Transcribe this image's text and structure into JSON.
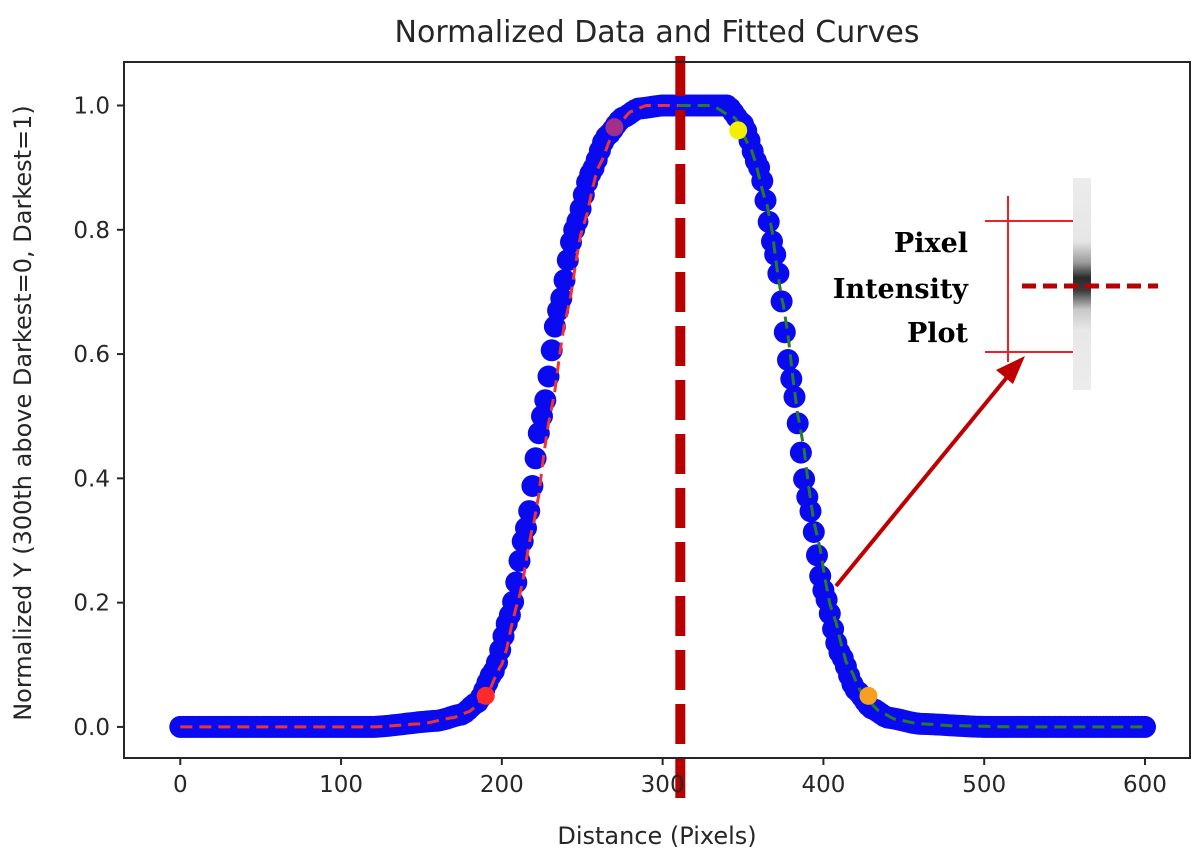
{
  "chart_data": {
    "type": "scatter",
    "title": "Normalized Data and Fitted Curves",
    "xlabel": "Distance (Pixels)",
    "ylabel": "Normalized Y (300th above Darkest=0, Darkest=1)",
    "xlim": [
      -35,
      628
    ],
    "ylim": [
      -0.05,
      1.07
    ],
    "xticks": [
      0,
      100,
      200,
      300,
      400,
      500,
      600
    ],
    "yticks": [
      0.0,
      0.2,
      0.4,
      0.6,
      0.8,
      1.0
    ],
    "xtick_labels": [
      "0",
      "100",
      "200",
      "300",
      "400",
      "500",
      "600"
    ],
    "ytick_labels": [
      "0.0",
      "0.2",
      "0.4",
      "0.6",
      "0.8",
      "1.0"
    ],
    "grid": false,
    "data_series": {
      "color": "#0a0af0",
      "x": [
        0,
        40,
        80,
        120,
        160,
        175,
        185,
        195,
        205,
        215,
        225,
        235,
        245,
        255,
        265,
        275,
        285,
        300,
        320,
        340,
        350,
        360,
        370,
        380,
        390,
        400,
        410,
        420,
        430,
        440,
        460,
        500,
        540,
        580,
        600
      ],
      "y": [
        0.0,
        0.0,
        0.0,
        0.0,
        0.01,
        0.02,
        0.04,
        0.09,
        0.18,
        0.32,
        0.5,
        0.67,
        0.8,
        0.89,
        0.95,
        0.98,
        0.995,
        1.0,
        1.0,
        1.0,
        0.97,
        0.9,
        0.76,
        0.56,
        0.37,
        0.22,
        0.12,
        0.06,
        0.03,
        0.015,
        0.005,
        0.0,
        0.0,
        0.0,
        0.0
      ]
    },
    "fit_left": {
      "color": "#ee3333",
      "x": [
        0,
        40,
        80,
        120,
        150,
        170,
        180,
        190,
        200,
        210,
        220,
        230,
        240,
        250,
        260,
        270,
        280,
        290,
        300,
        310
      ],
      "y": [
        0.0,
        0.0,
        0.0,
        0.0,
        0.005,
        0.015,
        0.025,
        0.05,
        0.1,
        0.2,
        0.33,
        0.5,
        0.66,
        0.8,
        0.9,
        0.96,
        0.99,
        1.0,
        1.0,
        1.0
      ]
    },
    "fit_right": {
      "color": "#2a7a2a",
      "x": [
        310,
        330,
        345,
        355,
        365,
        375,
        385,
        395,
        405,
        415,
        425,
        435,
        445,
        460,
        480,
        520,
        560,
        600
      ],
      "y": [
        1.0,
        1.0,
        0.98,
        0.93,
        0.84,
        0.68,
        0.49,
        0.32,
        0.19,
        0.1,
        0.05,
        0.025,
        0.012,
        0.005,
        0.002,
        0.0,
        0.0,
        0.0
      ]
    },
    "marker_points": [
      {
        "x": 190,
        "y": 0.05,
        "color": "#ff2a2a"
      },
      {
        "x": 270,
        "y": 0.965,
        "color": "#a0308a"
      },
      {
        "x": 347,
        "y": 0.96,
        "color": "#f2f000"
      },
      {
        "x": 428,
        "y": 0.05,
        "color": "#f5a020"
      }
    ],
    "center_line": {
      "x": 311,
      "color": "#b80000"
    }
  },
  "inset": {
    "label_lines": [
      "Pixel",
      "Intensity",
      "Plot"
    ],
    "bracket_color": "#ee2222",
    "dash_color": "#b80000",
    "arrow_color": "#c00000"
  }
}
